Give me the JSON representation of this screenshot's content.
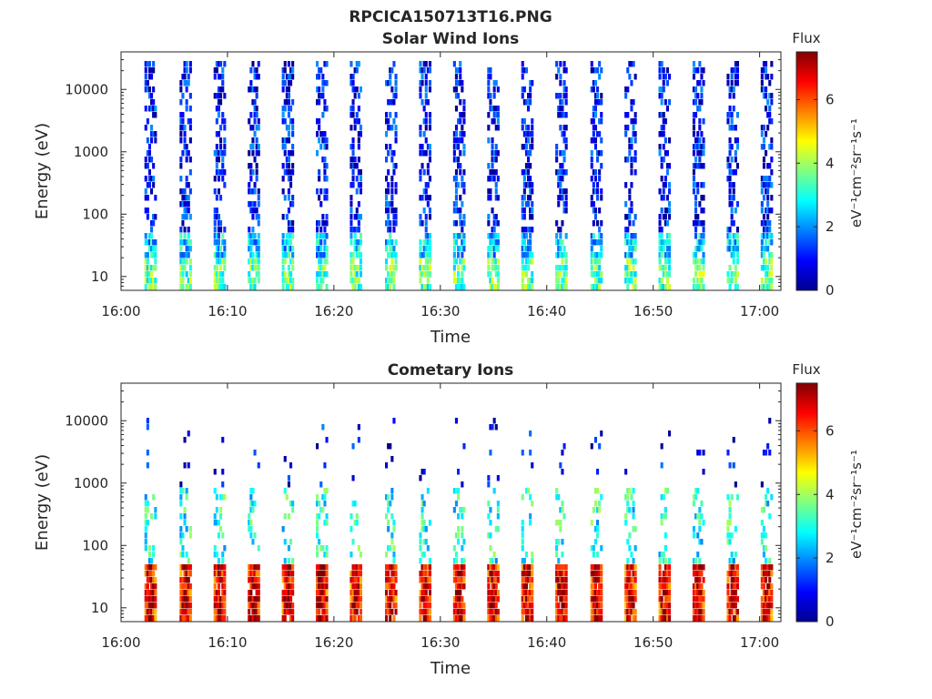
{
  "figure": {
    "title": "RPCICA150713T16.PNG"
  },
  "palette": [
    "#00008f",
    "#0000ff",
    "#0080ff",
    "#00ffff",
    "#80ff80",
    "#ffff00",
    "#ff8000",
    "#ff0000",
    "#800000"
  ],
  "chart_data": [
    {
      "type": "heatmap",
      "title": "Solar Wind Ions",
      "xlabel": "Time",
      "ylabel": "Energy (eV)",
      "xlim": [
        "16:00",
        "17:02"
      ],
      "ylim": [
        6,
        40000
      ],
      "yscale": "log",
      "x_ticks": [
        "16:00",
        "16:10",
        "16:20",
        "16:30",
        "16:40",
        "16:50",
        "17:00"
      ],
      "y_ticks": [
        10,
        100,
        1000,
        10000
      ],
      "y_tick_labels": [
        "10",
        "100",
        "1000",
        "10000"
      ],
      "colorbar": {
        "title": "Flux",
        "label": "eV⁻¹cm⁻²sr⁻¹s⁻¹",
        "range": [
          0,
          7.5
        ],
        "ticks": [
          0,
          2,
          4,
          6
        ],
        "tick_labels": [
          "0",
          "2",
          "4",
          "6"
        ]
      },
      "scan_start_times_min": [
        2.2,
        5.5,
        8.7,
        11.9,
        15.1,
        18.3,
        21.5,
        24.8,
        28.0,
        31.2,
        34.4,
        37.6,
        40.8,
        44.1,
        47.3,
        50.5,
        53.7,
        56.9,
        60.1
      ],
      "bands": [
        {
          "energy_range": [
            6,
            20
          ],
          "typical_flux": 3.5
        },
        {
          "energy_range": [
            20,
            60
          ],
          "typical_flux": 2.5
        },
        {
          "energy_range": [
            60,
            30000
          ],
          "typical_flux": 1.0
        }
      ]
    },
    {
      "type": "heatmap",
      "title": "Cometary Ions",
      "xlabel": "Time",
      "ylabel": "Energy (eV)",
      "xlim": [
        "16:00",
        "17:02"
      ],
      "ylim": [
        6,
        40000
      ],
      "yscale": "log",
      "x_ticks": [
        "16:00",
        "16:10",
        "16:20",
        "16:30",
        "16:40",
        "16:50",
        "17:00"
      ],
      "y_ticks": [
        10,
        100,
        1000,
        10000
      ],
      "y_tick_labels": [
        "10",
        "100",
        "1000",
        "10000"
      ],
      "colorbar": {
        "title": "Flux",
        "label": "eV⁻¹cm⁻²sr⁻¹s⁻¹",
        "range": [
          0,
          7.5
        ],
        "ticks": [
          0,
          2,
          4,
          6
        ],
        "tick_labels": [
          "0",
          "2",
          "4",
          "6"
        ]
      },
      "scan_start_times_min": [
        2.2,
        5.5,
        8.7,
        11.9,
        15.1,
        18.3,
        21.5,
        24.8,
        28.0,
        31.2,
        34.4,
        37.6,
        40.8,
        44.1,
        47.3,
        50.5,
        53.7,
        56.9,
        60.1
      ],
      "bands": [
        {
          "energy_range": [
            6,
            60
          ],
          "typical_flux": 6.0
        },
        {
          "energy_range": [
            60,
            1000
          ],
          "typical_flux": 3.0
        },
        {
          "energy_range": [
            1000,
            12000
          ],
          "typical_flux": 0.8
        }
      ]
    }
  ]
}
